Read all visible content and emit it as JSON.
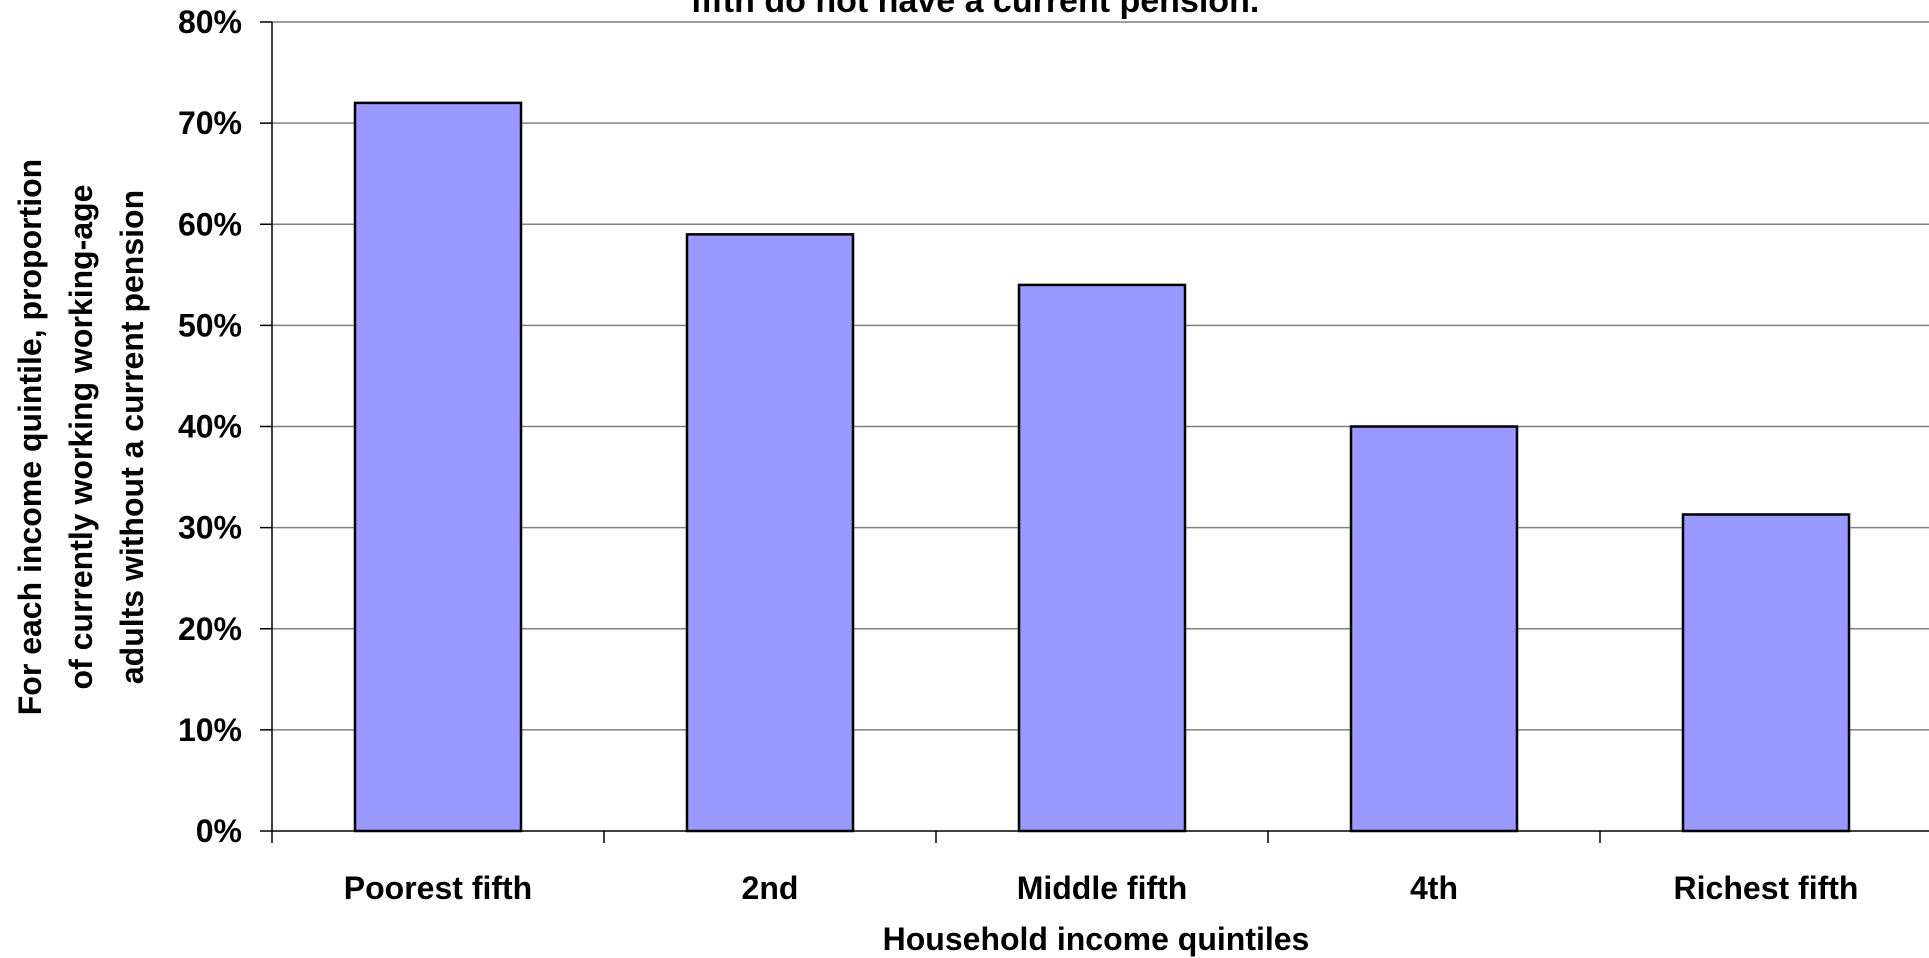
{
  "chart_data": {
    "type": "bar",
    "title": "fifth do not have a current pension.",
    "categories": [
      "Poorest fifth",
      "2nd",
      "Middle fifth",
      "4th",
      "Richest fifth"
    ],
    "values": [
      72,
      59,
      54,
      40,
      31.3
    ],
    "ylim": [
      0,
      80
    ],
    "yticks": [
      0,
      10,
      20,
      30,
      40,
      50,
      60,
      70,
      80
    ],
    "ytick_labels": [
      "0%",
      "10%",
      "20%",
      "30%",
      "40%",
      "50%",
      "60%",
      "70%",
      "80%"
    ],
    "xlabel": "Household income quintiles",
    "ylabel_lines": [
      "For each income quintile, proportion",
      "of currently working working-age",
      "adults without a current pension"
    ],
    "grid": true,
    "bar_color": "#9999ff",
    "bar_edge_color": "#000000"
  }
}
